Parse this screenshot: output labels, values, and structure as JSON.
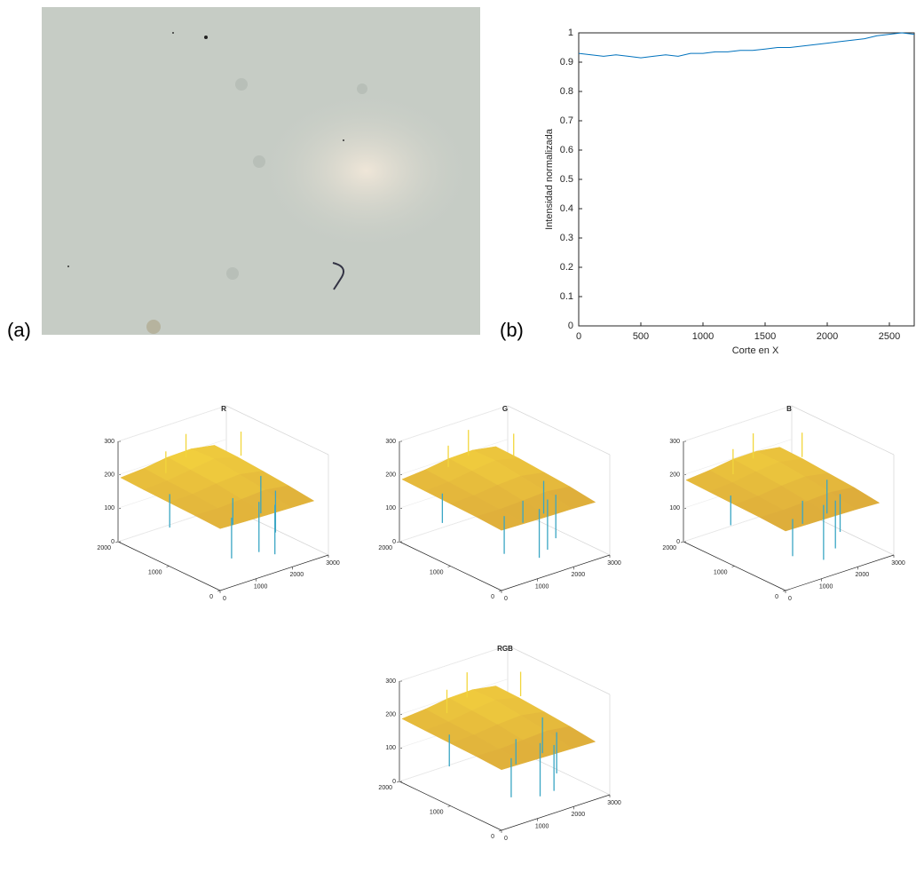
{
  "panel_labels": [
    "(a)",
    "(b)"
  ],
  "chart_data": [
    {
      "type": "line",
      "x_label": "Corte en X",
      "y_label": "Intensidad normalizada",
      "color": "#0072bd",
      "x": [
        0,
        100,
        200,
        300,
        400,
        500,
        600,
        700,
        800,
        900,
        1000,
        1100,
        1200,
        1300,
        1400,
        1500,
        1600,
        1700,
        1800,
        1900,
        2000,
        2100,
        2200,
        2300,
        2400,
        2500,
        2600,
        2700
      ],
      "values": [
        0.93,
        0.925,
        0.92,
        0.925,
        0.92,
        0.915,
        0.92,
        0.925,
        0.92,
        0.93,
        0.93,
        0.935,
        0.935,
        0.94,
        0.94,
        0.945,
        0.95,
        0.95,
        0.955,
        0.96,
        0.965,
        0.97,
        0.975,
        0.98,
        0.99,
        0.995,
        1.0,
        0.995
      ],
      "xlim": [
        0,
        2700
      ],
      "ylim": [
        0,
        1
      ],
      "xticks": [
        0,
        500,
        1000,
        1500,
        2000,
        2500
      ],
      "yticks": [
        0,
        0.1,
        0.2,
        0.3,
        0.4,
        0.5,
        0.6,
        0.7,
        0.8,
        0.9,
        1
      ]
    },
    {
      "type": "surface3d",
      "title": "R",
      "xlim": [
        0,
        3000
      ],
      "ylim": [
        0,
        2000
      ],
      "zlim": [
        0,
        300
      ],
      "xticks": [
        0,
        1000,
        2000,
        3000
      ],
      "yticks": [
        0,
        1000,
        2000
      ],
      "zticks": [
        0,
        100,
        200,
        300
      ],
      "grid_x": [
        0,
        650,
        1300,
        1950,
        2600
      ],
      "grid_y": [
        0,
        500,
        1000,
        1500,
        1950
      ],
      "z": [
        [
          185,
          182,
          180,
          178,
          176
        ],
        [
          188,
          186,
          190,
          195,
          185
        ],
        [
          190,
          192,
          200,
          205,
          192
        ],
        [
          192,
          195,
          205,
          215,
          198
        ],
        [
          195,
          200,
          210,
          212,
          200
        ]
      ],
      "spikes": [
        [
          600,
          200,
          60
        ],
        [
          1500,
          300,
          40
        ],
        [
          1800,
          200,
          30
        ],
        [
          2100,
          400,
          70
        ],
        [
          2400,
          900,
          80
        ],
        [
          300,
          1200,
          90
        ],
        [
          900,
          1700,
          260
        ],
        [
          1600,
          1800,
          280
        ],
        [
          2700,
          1500,
          270
        ],
        [
          1200,
          600,
          110
        ]
      ]
    },
    {
      "type": "surface3d",
      "title": "G",
      "xlim": [
        0,
        3000
      ],
      "ylim": [
        0,
        2000
      ],
      "zlim": [
        0,
        300
      ],
      "xticks": [
        0,
        1000,
        2000,
        3000
      ],
      "yticks": [
        0,
        1000,
        2000
      ],
      "zticks": [
        0,
        100,
        200,
        300
      ],
      "grid_x": [
        0,
        650,
        1300,
        1950,
        2600
      ],
      "grid_y": [
        0,
        500,
        1000,
        1500,
        1950
      ],
      "z": [
        [
          180,
          178,
          176,
          175,
          172
        ],
        [
          184,
          183,
          186,
          190,
          182
        ],
        [
          186,
          188,
          196,
          200,
          188
        ],
        [
          188,
          192,
          202,
          210,
          194
        ],
        [
          190,
          196,
          206,
          208,
          196
        ]
      ],
      "spikes": [
        [
          500,
          300,
          70
        ],
        [
          1400,
          250,
          30
        ],
        [
          1700,
          300,
          40
        ],
        [
          2000,
          350,
          60
        ],
        [
          2300,
          800,
          90
        ],
        [
          200,
          1300,
          100
        ],
        [
          1000,
          1750,
          270
        ],
        [
          1700,
          1850,
          285
        ],
        [
          2600,
          1600,
          260
        ],
        [
          1300,
          500,
          120
        ]
      ]
    },
    {
      "type": "surface3d",
      "title": "B",
      "xlim": [
        0,
        3000
      ],
      "ylim": [
        0,
        2000
      ],
      "zlim": [
        0,
        300
      ],
      "xticks": [
        0,
        1000,
        2000,
        3000
      ],
      "yticks": [
        0,
        1000,
        2000
      ],
      "zticks": [
        0,
        100,
        200,
        300
      ],
      "grid_x": [
        0,
        650,
        1300,
        1950,
        2600
      ],
      "grid_y": [
        0,
        500,
        1000,
        1500,
        1950
      ],
      "z": [
        [
          178,
          176,
          175,
          173,
          170
        ],
        [
          182,
          181,
          184,
          188,
          180
        ],
        [
          184,
          186,
          194,
          198,
          186
        ],
        [
          186,
          190,
          200,
          206,
          192
        ],
        [
          188,
          194,
          204,
          205,
          194
        ]
      ],
      "spikes": [
        [
          550,
          250,
          65
        ],
        [
          1450,
          280,
          20
        ],
        [
          1750,
          260,
          45
        ],
        [
          2050,
          380,
          75
        ],
        [
          2350,
          850,
          85
        ],
        [
          250,
          1250,
          95
        ],
        [
          950,
          1700,
          265
        ],
        [
          1650,
          1800,
          280
        ],
        [
          2650,
          1550,
          265
        ],
        [
          1250,
          550,
          115
        ]
      ]
    },
    {
      "type": "surface3d",
      "title": "RGB",
      "xlim": [
        0,
        3000
      ],
      "ylim": [
        0,
        2000
      ],
      "zlim": [
        0,
        300
      ],
      "xticks": [
        0,
        1000,
        2000,
        3000
      ],
      "yticks": [
        0,
        1000,
        2000
      ],
      "zticks": [
        0,
        100,
        200,
        300
      ],
      "grid_x": [
        0,
        650,
        1300,
        1950,
        2600
      ],
      "grid_y": [
        0,
        500,
        1000,
        1500,
        1950
      ],
      "z": [
        [
          181,
          179,
          177,
          175,
          173
        ],
        [
          185,
          183,
          187,
          191,
          182
        ],
        [
          187,
          189,
          197,
          201,
          189
        ],
        [
          189,
          192,
          202,
          211,
          195
        ],
        [
          191,
          197,
          207,
          209,
          197
        ]
      ],
      "spikes": [
        [
          580,
          220,
          62
        ],
        [
          1480,
          290,
          28
        ],
        [
          1780,
          230,
          38
        ],
        [
          2080,
          390,
          68
        ],
        [
          2380,
          880,
          82
        ],
        [
          280,
          1220,
          92
        ],
        [
          920,
          1720,
          262
        ],
        [
          1620,
          1820,
          282
        ],
        [
          2680,
          1520,
          268
        ],
        [
          1220,
          580,
          112
        ]
      ]
    }
  ]
}
